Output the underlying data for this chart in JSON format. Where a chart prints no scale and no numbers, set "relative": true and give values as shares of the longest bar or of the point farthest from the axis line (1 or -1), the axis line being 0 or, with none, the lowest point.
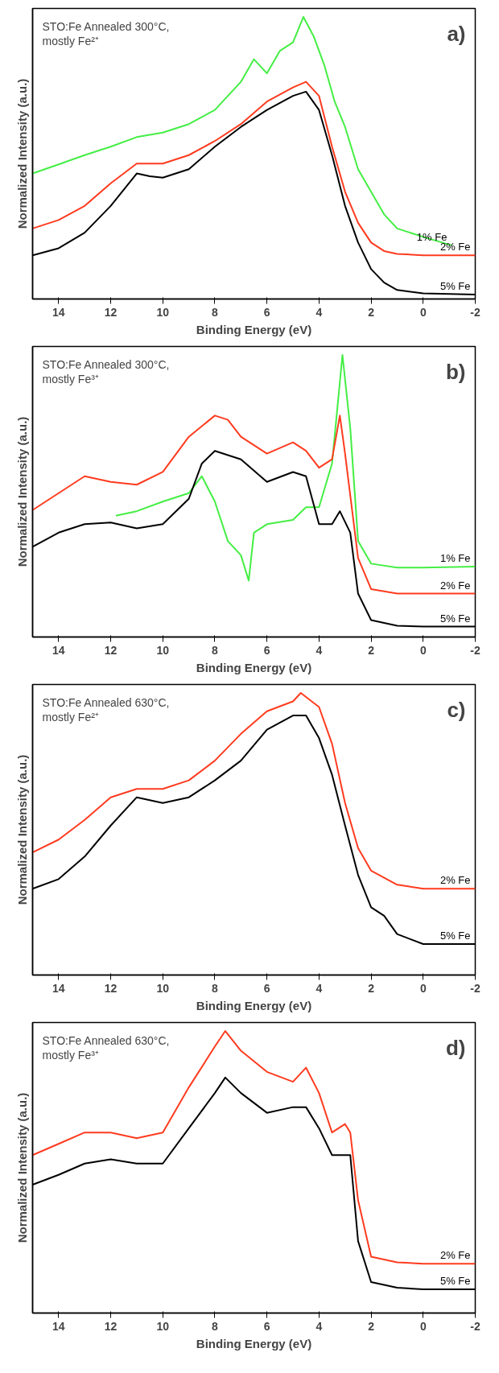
{
  "chart_data": [
    {
      "type": "line",
      "title": "STO:Fe Annealed 300°C,\nmostly Fe²⁺",
      "annotations": [
        "a)"
      ],
      "xlabel": "Binding Energy (eV)",
      "ylabel": "Normalized Intensity (a.u.)",
      "relative": true,
      "xlim": [
        15,
        -2
      ],
      "xticks": [
        14,
        12,
        10,
        8,
        6,
        4,
        2,
        0,
        -2
      ],
      "tick_labels": "x",
      "legend": false,
      "grid": false,
      "series": [
        {
          "name": "1% Fe",
          "color": "#44ee44",
          "x": [
            15,
            14,
            13,
            12,
            11,
            10,
            9,
            8,
            7,
            6.5,
            6,
            5.5,
            5,
            4.6,
            4.2,
            3.8,
            3.4,
            3,
            2.5,
            2,
            1.5,
            1,
            0,
            -1.1
          ],
          "values": [
            0.445,
            0.477,
            0.51,
            0.54,
            0.574,
            0.59,
            0.62,
            0.67,
            0.77,
            0.85,
            0.8,
            0.88,
            0.91,
            1.0,
            0.93,
            0.83,
            0.7,
            0.61,
            0.46,
            0.38,
            0.3,
            0.25,
            0.22,
            0.19
          ]
        },
        {
          "name": "2% Fe",
          "color": "#ff3b1f",
          "x": [
            15,
            14,
            13,
            12,
            11,
            10,
            9,
            8,
            7,
            6,
            5,
            4.5,
            4,
            3.5,
            3,
            2.5,
            2,
            1.5,
            1,
            0,
            -2
          ],
          "values": [
            0.25,
            0.28,
            0.33,
            0.41,
            0.48,
            0.48,
            0.51,
            0.56,
            0.62,
            0.7,
            0.75,
            0.77,
            0.72,
            0.54,
            0.38,
            0.27,
            0.2,
            0.17,
            0.16,
            0.155,
            0.155
          ]
        },
        {
          "name": "5% Fe",
          "color": "#000000",
          "x": [
            15,
            14,
            13,
            12,
            11,
            10.5,
            10,
            9,
            8,
            7,
            6,
            5,
            4.5,
            4,
            3.5,
            3,
            2.5,
            2,
            1.5,
            1,
            0,
            -2
          ],
          "values": [
            0.155,
            0.18,
            0.235,
            0.33,
            0.445,
            0.435,
            0.43,
            0.46,
            0.54,
            0.61,
            0.67,
            0.72,
            0.735,
            0.67,
            0.51,
            0.33,
            0.2,
            0.106,
            0.058,
            0.032,
            0.02,
            0.016
          ]
        }
      ]
    },
    {
      "type": "line",
      "title": "STO:Fe Annealed 300°C,\nmostly Fe³⁺",
      "annotations": [
        "b)"
      ],
      "xlabel": "Binding Energy (eV)",
      "ylabel": "Normalized Intensity (a.u.)",
      "relative": true,
      "xlim": [
        15,
        -2
      ],
      "xticks": [
        14,
        12,
        10,
        8,
        6,
        4,
        2,
        0,
        -2
      ],
      "tick_labels": "x",
      "legend": false,
      "grid": false,
      "series": [
        {
          "name": "1% Fe",
          "color": "#44ee44",
          "x": [
            11.8,
            11,
            10,
            9,
            8.5,
            8,
            7.5,
            7,
            6.7,
            6.5,
            6,
            5,
            4.5,
            4,
            3.5,
            3.1,
            2.8,
            2.5,
            2,
            1,
            0,
            -2
          ],
          "values": [
            0.43,
            0.446,
            0.48,
            0.51,
            0.57,
            0.48,
            0.34,
            0.29,
            0.2,
            0.37,
            0.4,
            0.415,
            0.46,
            0.46,
            0.615,
            1.0,
            0.74,
            0.34,
            0.26,
            0.246,
            0.246,
            0.25
          ]
        },
        {
          "name": "2% Fe",
          "color": "#ff3b1f",
          "x": [
            15,
            14,
            13,
            12,
            11,
            10,
            9,
            8,
            7.5,
            7,
            6,
            5,
            4.5,
            4,
            3.5,
            3.2,
            3,
            2.5,
            2,
            1,
            0,
            -2
          ],
          "values": [
            0.45,
            0.51,
            0.57,
            0.55,
            0.54,
            0.585,
            0.71,
            0.785,
            0.77,
            0.71,
            0.65,
            0.69,
            0.66,
            0.6,
            0.63,
            0.785,
            0.65,
            0.28,
            0.17,
            0.154,
            0.154,
            0.154
          ]
        },
        {
          "name": "5% Fe",
          "color": "#000000",
          "x": [
            15,
            14,
            13,
            12,
            11,
            10,
            9,
            8.5,
            8,
            7,
            6,
            5,
            4.5,
            4,
            3.5,
            3.2,
            2.8,
            2.5,
            2,
            1,
            0,
            -2
          ],
          "values": [
            0.32,
            0.37,
            0.4,
            0.406,
            0.385,
            0.4,
            0.49,
            0.615,
            0.66,
            0.63,
            0.55,
            0.585,
            0.57,
            0.4,
            0.4,
            0.446,
            0.37,
            0.154,
            0.06,
            0.04,
            0.037,
            0.037
          ]
        }
      ]
    },
    {
      "type": "line",
      "title": "STO:Fe Annealed 630°C,\nmostly Fe²⁺",
      "annotations": [
        "c)"
      ],
      "xlabel": "Binding Energy (eV)",
      "ylabel": "Normalized Intensity (a.u.)",
      "relative": true,
      "xlim": [
        15,
        -2
      ],
      "xticks": [
        14,
        12,
        10,
        8,
        6,
        4,
        2,
        0,
        -2
      ],
      "tick_labels": "x",
      "legend": false,
      "grid": false,
      "series": [
        {
          "name": "2% Fe",
          "color": "#ff3b1f",
          "x": [
            15,
            14,
            13,
            12,
            11,
            10,
            9,
            8,
            7,
            6,
            5,
            4.7,
            4,
            3.5,
            3,
            2.5,
            2,
            1,
            0,
            -2
          ],
          "values": [
            0.435,
            0.48,
            0.55,
            0.63,
            0.66,
            0.66,
            0.69,
            0.76,
            0.855,
            0.935,
            0.97,
            1.0,
            0.95,
            0.82,
            0.61,
            0.45,
            0.37,
            0.32,
            0.306,
            0.306
          ]
        },
        {
          "name": "5% Fe",
          "color": "#000000",
          "x": [
            15,
            14,
            13,
            12,
            11,
            10,
            9,
            8,
            7,
            6,
            5,
            4.5,
            4,
            3.5,
            3,
            2.5,
            2,
            1.5,
            1,
            0,
            -2
          ],
          "values": [
            0.306,
            0.34,
            0.42,
            0.53,
            0.63,
            0.61,
            0.63,
            0.69,
            0.76,
            0.87,
            0.92,
            0.92,
            0.84,
            0.71,
            0.53,
            0.355,
            0.24,
            0.21,
            0.145,
            0.11,
            0.11
          ]
        }
      ]
    },
    {
      "type": "line",
      "title": "STO:Fe Annealed 630°C,\nmostly Fe³⁺",
      "annotations": [
        "d)"
      ],
      "xlabel": "Binding Energy (eV)",
      "ylabel": "Normalized Intensity (a.u.)",
      "relative": true,
      "xlim": [
        15,
        -2
      ],
      "xticks": [
        14,
        12,
        10,
        8,
        6,
        4,
        2,
        0,
        -2
      ],
      "tick_labels": "x",
      "legend": false,
      "grid": false,
      "series": [
        {
          "name": "2% Fe",
          "color": "#ff3b1f",
          "x": [
            15,
            14,
            13,
            12,
            11,
            10,
            9,
            8,
            7.6,
            7,
            6,
            5,
            4.5,
            4,
            3.5,
            3,
            2.8,
            2.5,
            2,
            1,
            0,
            -2
          ],
          "values": [
            0.56,
            0.6,
            0.64,
            0.64,
            0.62,
            0.64,
            0.8,
            0.945,
            1.0,
            0.93,
            0.855,
            0.82,
            0.87,
            0.78,
            0.64,
            0.67,
            0.64,
            0.4,
            0.2,
            0.18,
            0.175,
            0.175
          ]
        },
        {
          "name": "5% Fe",
          "color": "#000000",
          "x": [
            15,
            14,
            13,
            12,
            11,
            10,
            9,
            8,
            7.6,
            7,
            6,
            5,
            4.5,
            4,
            3.5,
            3,
            2.8,
            2.5,
            2,
            1,
            0,
            -2
          ],
          "values": [
            0.455,
            0.49,
            0.53,
            0.545,
            0.53,
            0.53,
            0.655,
            0.78,
            0.835,
            0.78,
            0.71,
            0.73,
            0.73,
            0.655,
            0.56,
            0.56,
            0.56,
            0.255,
            0.11,
            0.09,
            0.084,
            0.084
          ]
        }
      ]
    }
  ]
}
